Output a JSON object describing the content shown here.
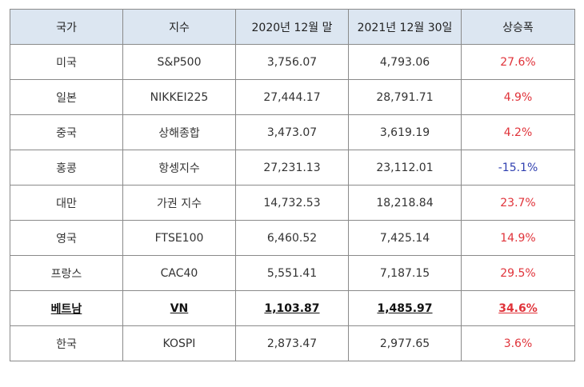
{
  "table": {
    "headers": [
      "국가",
      "지수",
      "2020년 12월 말",
      "2021년 12월 30일",
      "상승폭"
    ],
    "rows": [
      {
        "country": "미국",
        "index": "S&P500",
        "end_2020": "3,756.07",
        "end_2021": "4,793.06",
        "change": "27.6%",
        "direction": "up"
      },
      {
        "country": "일본",
        "index": "NIKKEI225",
        "end_2020": "27,444.17",
        "end_2021": "28,791.71",
        "change": "4.9%",
        "direction": "up"
      },
      {
        "country": "중국",
        "index": "상해종합",
        "end_2020": "3,473.07",
        "end_2021": "3,619.19",
        "change": "4.2%",
        "direction": "up"
      },
      {
        "country": "홍콩",
        "index": "항셍지수",
        "end_2020": "27,231.13",
        "end_2021": "23,112.01",
        "change": "-15.1%",
        "direction": "down"
      },
      {
        "country": "대만",
        "index": "가권 지수",
        "end_2020": "14,732.53",
        "end_2021": "18,218.84",
        "change": "23.7%",
        "direction": "up"
      },
      {
        "country": "영국",
        "index": "FTSE100",
        "end_2020": "6,460.52",
        "end_2021": "7,425.14",
        "change": "14.9%",
        "direction": "up"
      },
      {
        "country": "프랑스",
        "index": "CAC40",
        "end_2020": "5,551.41",
        "end_2021": "7,187.15",
        "change": "29.5%",
        "direction": "up"
      },
      {
        "country": "베트남",
        "index": "VN",
        "end_2020": "1,103.87",
        "end_2021": "1,485.97",
        "change": "34.6%",
        "direction": "up",
        "highlight": true
      },
      {
        "country": "한국",
        "index": "KOSPI",
        "end_2020": "2,873.47",
        "end_2021": "2,977.65",
        "change": "3.6%",
        "direction": "up"
      }
    ]
  },
  "colors": {
    "header_bg": "#dce6f1",
    "positive": "#e0333a",
    "negative": "#2f3fb0",
    "border": "#8a8a8a"
  }
}
